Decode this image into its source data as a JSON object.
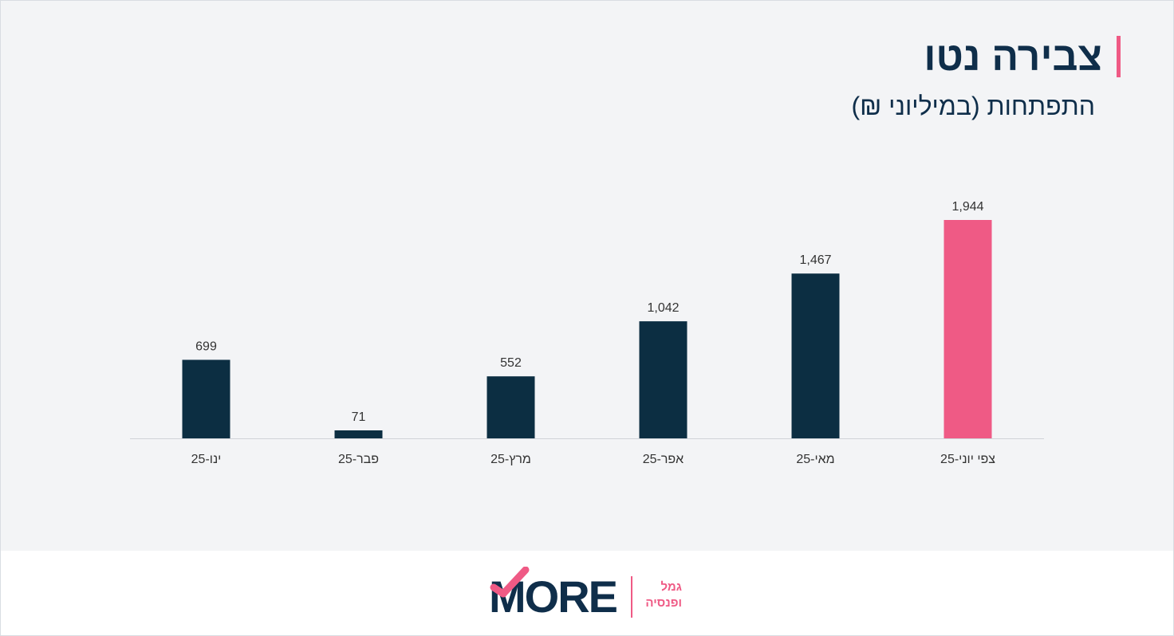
{
  "title": "צבירה נטו",
  "subtitle": "התפתחות (במיליוני ₪)",
  "colors": {
    "bar": "#0c2e42",
    "highlight": "#ef5a85",
    "text": "#333333",
    "axis": "#d0d3d8"
  },
  "chart_data": {
    "type": "bar",
    "categories": [
      "ינו-25",
      "פבר-25",
      "מרץ-25",
      "אפר-25",
      "מאי-25",
      "צפי יוני-25"
    ],
    "values": [
      699,
      71,
      552,
      1042,
      1467,
      1944
    ],
    "value_labels": [
      "699",
      "71",
      "552",
      "1,042",
      "1,467",
      "1,944"
    ],
    "highlight_index": 5,
    "ylim": [
      0,
      1944
    ],
    "grid": false,
    "legend": "none"
  },
  "logo": {
    "word": "MORE",
    "tagline_1": "גמל",
    "tagline_2": "ופנסיה"
  }
}
